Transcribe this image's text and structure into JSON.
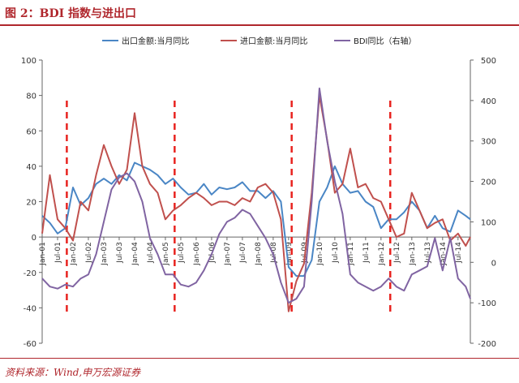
{
  "header": {
    "title": "图 2：BDI 指数与进出口"
  },
  "footer": {
    "source": "资料来源：Wind,申万宏源证券"
  },
  "colors": {
    "accent": "#b0272d",
    "export": "#4a86c5",
    "import": "#c0504d",
    "bdi": "#8064a2",
    "marker": "#e8231f"
  },
  "chart_data": {
    "type": "line",
    "legend": [
      "出口金额:当月同比",
      "进口金额:当月同比",
      "BDI同比（右轴）"
    ],
    "legend_position": "top",
    "grid": false,
    "y_left": {
      "min": -60,
      "max": 100,
      "ticks": [
        100,
        80,
        60,
        40,
        20,
        0,
        -20,
        -40,
        -60
      ]
    },
    "y_right": {
      "min": -200,
      "max": 500,
      "ticks": [
        500,
        400,
        300,
        200,
        100,
        0,
        -100,
        -200
      ]
    },
    "x_ticks": [
      "Jan-01",
      "Jul-01",
      "Jan-02",
      "Jul-02",
      "Jan-03",
      "Jul-03",
      "Jan-04",
      "Jul-04",
      "Jan-05",
      "Jul-05",
      "Jan-06",
      "Jul-06",
      "Jan-07",
      "Jul-07",
      "Jan-08",
      "Jul-08",
      "Jan-09",
      "Jul-09",
      "Jan-10",
      "Jul-10",
      "Jan-11",
      "Jul-11",
      "Jan-12",
      "Jul-12",
      "Jan-13",
      "Jul-13",
      "Jan-14",
      "Jul-14"
    ],
    "x_range": [
      2001.0,
      2014.9
    ],
    "vertical_markers": [
      2001.8,
      2005.3,
      2009.1,
      2012.3
    ],
    "series": [
      {
        "name": "出口金额:当月同比",
        "axis": "left",
        "x": [
          2001.0,
          2001.25,
          2001.5,
          2001.75,
          2002.0,
          2002.25,
          2002.5,
          2002.75,
          2003.0,
          2003.25,
          2003.5,
          2003.75,
          2004.0,
          2004.25,
          2004.5,
          2004.75,
          2005.0,
          2005.25,
          2005.5,
          2005.75,
          2006.0,
          2006.25,
          2006.5,
          2006.75,
          2007.0,
          2007.25,
          2007.5,
          2007.75,
          2008.0,
          2008.25,
          2008.5,
          2008.75,
          2009.0,
          2009.25,
          2009.5,
          2009.75,
          2010.0,
          2010.25,
          2010.5,
          2010.75,
          2011.0,
          2011.25,
          2011.5,
          2011.75,
          2012.0,
          2012.25,
          2012.5,
          2012.75,
          2013.0,
          2013.25,
          2013.5,
          2013.75,
          2014.0,
          2014.25,
          2014.5,
          2014.75,
          2014.9
        ],
        "y": [
          12,
          8,
          2,
          5,
          28,
          18,
          22,
          30,
          33,
          30,
          35,
          32,
          42,
          40,
          38,
          35,
          30,
          33,
          28,
          24,
          25,
          30,
          24,
          28,
          27,
          28,
          31,
          26,
          26,
          22,
          26,
          20,
          -17,
          -22,
          -22,
          -13,
          20,
          28,
          40,
          30,
          25,
          26,
          20,
          17,
          5,
          10,
          10,
          14,
          20,
          15,
          5,
          12,
          5,
          3,
          15,
          12,
          10
        ]
      },
      {
        "name": "进口金额:当月同比",
        "axis": "left",
        "x": [
          2001.0,
          2001.25,
          2001.5,
          2001.75,
          2002.0,
          2002.25,
          2002.5,
          2002.75,
          2003.0,
          2003.25,
          2003.5,
          2003.75,
          2004.0,
          2004.25,
          2004.5,
          2004.75,
          2005.0,
          2005.25,
          2005.5,
          2005.75,
          2006.0,
          2006.25,
          2006.5,
          2006.75,
          2007.0,
          2007.25,
          2007.5,
          2007.75,
          2008.0,
          2008.25,
          2008.5,
          2008.75,
          2009.0,
          2009.25,
          2009.5,
          2009.75,
          2010.0,
          2010.25,
          2010.5,
          2010.75,
          2011.0,
          2011.25,
          2011.5,
          2011.75,
          2012.0,
          2012.25,
          2012.5,
          2012.75,
          2013.0,
          2013.25,
          2013.5,
          2013.75,
          2014.0,
          2014.25,
          2014.5,
          2014.75,
          2014.9
        ],
        "y": [
          2,
          35,
          10,
          5,
          -2,
          20,
          15,
          35,
          52,
          40,
          30,
          38,
          70,
          40,
          30,
          25,
          10,
          15,
          18,
          22,
          25,
          22,
          18,
          20,
          20,
          18,
          22,
          20,
          28,
          30,
          25,
          10,
          -42,
          -25,
          -15,
          25,
          80,
          55,
          25,
          30,
          50,
          28,
          30,
          22,
          20,
          10,
          0,
          2,
          25,
          15,
          5,
          8,
          10,
          -2,
          2,
          -5,
          0
        ]
      },
      {
        "name": "BDI同比（右轴）",
        "axis": "right",
        "x": [
          2001.0,
          2001.25,
          2001.5,
          2001.75,
          2002.0,
          2002.25,
          2002.5,
          2002.75,
          2003.0,
          2003.25,
          2003.5,
          2003.75,
          2004.0,
          2004.25,
          2004.5,
          2004.75,
          2005.0,
          2005.25,
          2005.5,
          2005.75,
          2006.0,
          2006.25,
          2006.5,
          2006.75,
          2007.0,
          2007.25,
          2007.5,
          2007.75,
          2008.0,
          2008.25,
          2008.5,
          2008.75,
          2009.0,
          2009.25,
          2009.5,
          2009.75,
          2010.0,
          2010.25,
          2010.5,
          2010.75,
          2011.0,
          2011.25,
          2011.5,
          2011.75,
          2012.0,
          2012.25,
          2012.5,
          2012.75,
          2013.0,
          2013.25,
          2013.5,
          2013.75,
          2014.0,
          2014.25,
          2014.5,
          2014.75,
          2014.9
        ],
        "y": [
          -40,
          -60,
          -65,
          -55,
          -60,
          -40,
          -30,
          20,
          100,
          180,
          210,
          220,
          200,
          150,
          60,
          20,
          -30,
          -30,
          -55,
          -60,
          -50,
          -20,
          20,
          70,
          100,
          110,
          130,
          120,
          90,
          60,
          20,
          -50,
          -100,
          -90,
          -60,
          150,
          430,
          300,
          200,
          120,
          -30,
          -50,
          -60,
          -70,
          -60,
          -40,
          -60,
          -70,
          -30,
          -20,
          -10,
          60,
          -20,
          60,
          -40,
          -60,
          -90
        ]
      }
    ]
  }
}
